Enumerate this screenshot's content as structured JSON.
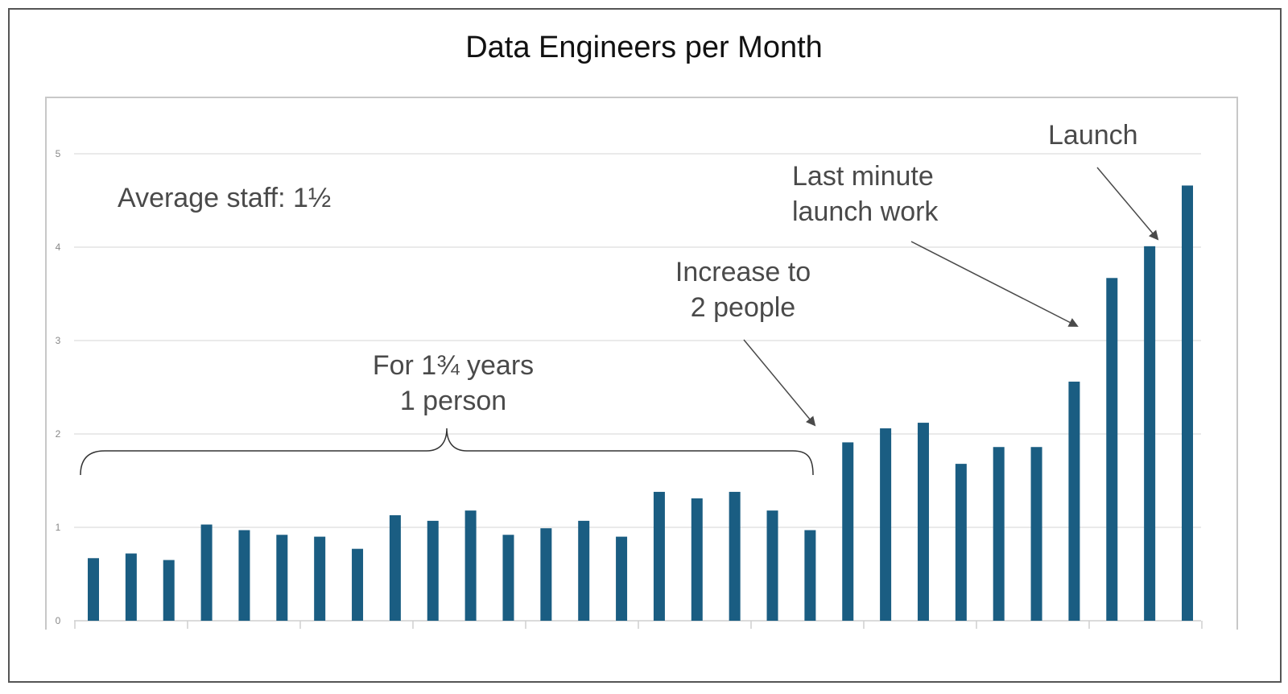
{
  "chart_data": {
    "type": "bar",
    "title": "Data Engineers per Month",
    "xlabel": "",
    "ylabel": "",
    "ylim": [
      0,
      5
    ],
    "yticks": [
      "0",
      "1",
      "2",
      "3",
      "4",
      "5"
    ],
    "values": [
      0.67,
      0.72,
      0.65,
      1.03,
      0.97,
      0.92,
      0.9,
      0.77,
      1.13,
      1.07,
      1.18,
      0.92,
      0.99,
      1.07,
      0.9,
      1.38,
      1.31,
      1.38,
      1.18,
      0.97,
      1.91,
      2.06,
      2.12,
      1.68,
      1.86,
      1.86,
      2.56,
      3.67,
      4.01,
      4.66
    ],
    "bar_color": "#1a5d82",
    "grid": true
  },
  "annotations": {
    "average": "Average staff:  1½",
    "years_line1": "For 1¾  years",
    "years_line2": "1 person",
    "increase_line1": "Increase to",
    "increase_line2": "2 people",
    "last_minute_line1": "Last minute",
    "last_minute_line2": "launch work",
    "launch": "Launch"
  }
}
